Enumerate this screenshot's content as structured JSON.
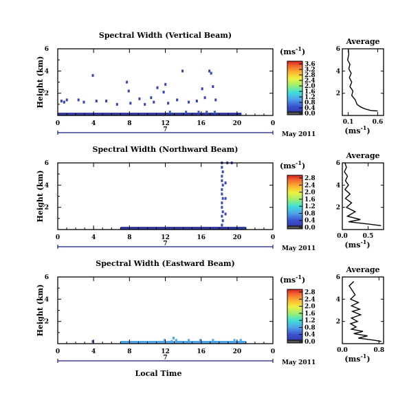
{
  "chart_data": [
    {
      "type": "heatmap",
      "title": "Spectral Width (Vertical Beam)",
      "ylabel": "Height (km)",
      "yticks": [
        "2",
        "4",
        "6"
      ],
      "ylim": [
        0,
        6
      ],
      "xlim": [
        0,
        24
      ],
      "xticks": [
        "0",
        "4",
        "8",
        "12",
        "16",
        "20",
        "0"
      ],
      "date_marker": "7",
      "date_label": "May 2011",
      "colorbar_unit": "(ms",
      "colorbar_unit_exp": "-1",
      "colorbar_unit_close": ")",
      "colorbar_ticks": [
        "0.0",
        "0.4",
        "0.8",
        "1.2",
        "1.6",
        "2.0",
        "2.4",
        "2.8",
        "3.2",
        "3.6"
      ],
      "colorbar_max": 3.8,
      "cells": [
        [
          0.3,
          1.3,
          0.3
        ],
        [
          0.6,
          1.2,
          0.3
        ],
        [
          0.9,
          1.4,
          0.3
        ],
        [
          2.2,
          1.4,
          0.3
        ],
        [
          2.8,
          1.2,
          0.3
        ],
        [
          3.8,
          3.6,
          0.3
        ],
        [
          4.2,
          1.3,
          0.3
        ],
        [
          5.3,
          1.3,
          0.3
        ],
        [
          6.5,
          1.0,
          0.3
        ],
        [
          7.6,
          3.0,
          0.3
        ],
        [
          7.8,
          2.2,
          0.3
        ],
        [
          8.0,
          1.1,
          0.3
        ],
        [
          9.0,
          1.5,
          0.3
        ],
        [
          9.6,
          1.0,
          0.3
        ],
        [
          10.3,
          1.6,
          0.3
        ],
        [
          10.6,
          1.2,
          0.3
        ],
        [
          11.0,
          2.5,
          0.3
        ],
        [
          11.7,
          2.1,
          0.3
        ],
        [
          11.9,
          2.8,
          0.3
        ],
        [
          12.2,
          1.1,
          0.3
        ],
        [
          13.2,
          1.4,
          0.3
        ],
        [
          13.8,
          4.0,
          0.3
        ],
        [
          14.5,
          1.2,
          0.3
        ],
        [
          15.4,
          1.3,
          0.3
        ],
        [
          16.0,
          2.4,
          0.3
        ],
        [
          16.3,
          1.6,
          0.3
        ],
        [
          16.8,
          4.0,
          0.3
        ],
        [
          17.0,
          3.8,
          0.3
        ],
        [
          17.2,
          2.6,
          0.3
        ],
        [
          17.5,
          1.4,
          0.3
        ],
        [
          12.4,
          0.3,
          0.6
        ],
        [
          14.2,
          0.3,
          0.6
        ],
        [
          15.6,
          0.3,
          0.6
        ],
        [
          16.5,
          0.3,
          0.6
        ],
        [
          17.4,
          0.3,
          0.7
        ]
      ],
      "surface": {
        "from": 0,
        "to": 20.5,
        "value": 0.1
      },
      "profile": {
        "title": "Average",
        "xticks": [
          "0.1",
          "0.6"
        ],
        "xlim": [
          0,
          0.7
        ],
        "ylim": [
          0,
          6
        ],
        "yticks": [
          "2",
          "4",
          "6"
        ],
        "xlabel": "(ms",
        "xlabel_exp": "-1",
        "xlabel_close": ")",
        "x": [
          0.1,
          0.11,
          0.09,
          0.13,
          0.11,
          0.15,
          0.12,
          0.16,
          0.13,
          0.18,
          0.16,
          0.22,
          0.25,
          0.3,
          0.38,
          0.48,
          0.6
        ],
        "y": [
          6.0,
          5.5,
          5.0,
          4.6,
          4.2,
          3.8,
          3.4,
          3.0,
          2.6,
          2.2,
          1.8,
          1.4,
          1.0,
          0.8,
          0.6,
          0.45,
          0.4
        ]
      }
    },
    {
      "type": "heatmap",
      "title": "Spectral Width (Northward Beam)",
      "ylabel": "Height (km)",
      "yticks": [
        "2",
        "4",
        "6"
      ],
      "ylim": [
        0,
        6
      ],
      "xlim": [
        0,
        24
      ],
      "xticks": [
        "0",
        "4",
        "8",
        "12",
        "16",
        "20",
        "0"
      ],
      "date_marker": "7",
      "date_label": "May 2011",
      "colorbar_unit": "(ms",
      "colorbar_unit_exp": "-1",
      "colorbar_unit_close": ")",
      "colorbar_ticks": [
        "0.0",
        "0.4",
        "0.8",
        "1.2",
        "1.6",
        "2.0",
        "2.4",
        "2.8"
      ],
      "colorbar_max": 3.0,
      "cells": [
        [
          18.2,
          6.0,
          0.3
        ],
        [
          18.2,
          5.6,
          0.3
        ],
        [
          18.3,
          5.2,
          0.3
        ],
        [
          18.2,
          4.8,
          0.3
        ],
        [
          18.2,
          4.4,
          0.3
        ],
        [
          18.3,
          4.0,
          0.3
        ],
        [
          18.2,
          3.6,
          0.3
        ],
        [
          18.2,
          3.2,
          0.3
        ],
        [
          18.3,
          2.8,
          0.3
        ],
        [
          18.2,
          2.4,
          0.3
        ],
        [
          18.2,
          2.0,
          0.3
        ],
        [
          18.3,
          1.6,
          0.3
        ],
        [
          18.2,
          1.2,
          0.3
        ],
        [
          18.3,
          0.8,
          0.3
        ],
        [
          18.2,
          0.4,
          0.3
        ],
        [
          18.8,
          6.0,
          0.3
        ],
        [
          19.3,
          6.0,
          0.3
        ],
        [
          18.6,
          4.2,
          0.3
        ],
        [
          18.6,
          2.8,
          0.3
        ],
        [
          18.6,
          1.4,
          0.3
        ]
      ],
      "surface": {
        "from": 7,
        "to": 21,
        "value": 0.1
      },
      "profile": {
        "title": "Average",
        "xticks": [
          "0.0",
          "0.5"
        ],
        "xlim": [
          0,
          0.8
        ],
        "ylim": [
          0,
          6
        ],
        "yticks": [
          "2",
          "4",
          "6"
        ],
        "xlabel": "(ms",
        "xlabel_exp": "-1",
        "xlabel_close": ")",
        "x": [
          0.05,
          0.08,
          0.04,
          0.1,
          0.06,
          0.12,
          0.05,
          0.15,
          0.06,
          0.18,
          0.08,
          0.25,
          0.1,
          0.35,
          0.12,
          0.5,
          0.75
        ],
        "y": [
          6.0,
          5.6,
          5.2,
          4.8,
          4.4,
          4.0,
          3.6,
          3.2,
          2.8,
          2.4,
          2.0,
          1.6,
          1.2,
          0.9,
          0.7,
          0.5,
          0.35
        ]
      }
    },
    {
      "type": "heatmap",
      "title": "Spectral Width (Eastward Beam)",
      "ylabel": "Height (km)",
      "yticks": [
        "2",
        "4",
        "6"
      ],
      "ylim": [
        0,
        6
      ],
      "xlim": [
        0,
        24
      ],
      "xticks": [
        "0",
        "4",
        "8",
        "12",
        "16",
        "20",
        "0"
      ],
      "date_marker": "7",
      "date_label": "May 2011",
      "xlabel": "Local Time",
      "colorbar_unit": "(ms",
      "colorbar_unit_exp": "-1",
      "colorbar_unit_close": ")",
      "colorbar_ticks": [
        "0.0",
        "0.4",
        "0.8",
        "1.2",
        "1.6",
        "2.0",
        "2.4",
        "2.8"
      ],
      "colorbar_max": 3.0,
      "cells": [
        [
          3.8,
          0.2,
          0.3
        ],
        [
          12.8,
          0.5,
          0.9
        ],
        [
          13.1,
          0.3,
          0.9
        ],
        [
          11.8,
          0.3,
          0.9
        ],
        [
          14.5,
          0.3,
          0.9
        ],
        [
          15.8,
          0.3,
          0.9
        ],
        [
          17.2,
          0.3,
          0.9
        ],
        [
          19.6,
          0.3,
          0.9
        ],
        [
          20.3,
          0.3,
          0.9
        ],
        [
          12.6,
          0.2,
          0.9
        ]
      ],
      "surface": {
        "from": 7,
        "to": 21,
        "value": 0.9
      },
      "profile": {
        "title": "Average",
        "xticks": [
          "0.0",
          "0.8"
        ],
        "xlim": [
          0,
          0.9
        ],
        "ylim": [
          0,
          6
        ],
        "yticks": [
          "2",
          "4",
          "6"
        ],
        "xlabel": "(ms",
        "xlabel_exp": "-1",
        "xlabel_close": ")",
        "x": [
          0.25,
          0.15,
          0.28,
          0.18,
          0.35,
          0.2,
          0.38,
          0.22,
          0.4,
          0.2,
          0.33,
          0.18,
          0.3,
          0.2,
          0.45,
          0.25,
          0.55,
          0.35,
          0.7,
          0.85
        ],
        "y": [
          5.6,
          5.2,
          4.4,
          4.0,
          3.7,
          3.4,
          3.1,
          2.9,
          2.6,
          2.3,
          2.0,
          1.8,
          1.5,
          1.3,
          1.1,
          0.9,
          0.7,
          0.5,
          0.3,
          0.2
        ]
      }
    }
  ]
}
